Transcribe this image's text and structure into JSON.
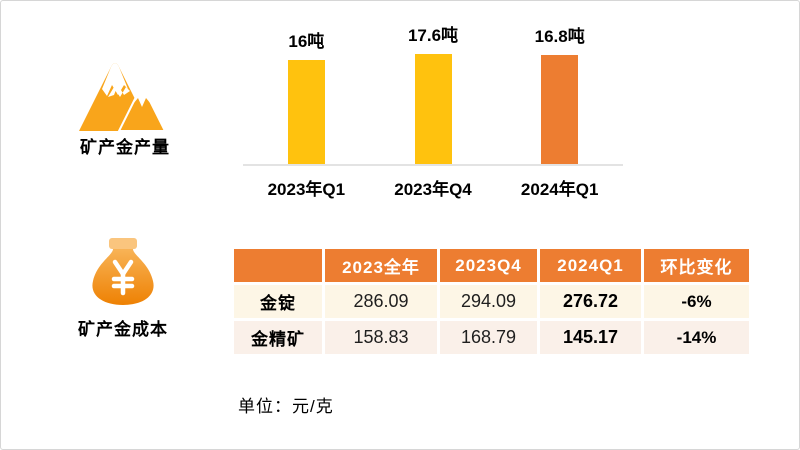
{
  "slide": {
    "background": "#FFFFFF",
    "border_color": "#D6D6D6"
  },
  "colors": {
    "accent_yellow": "#FFC20E",
    "accent_orange": "#ED7D31",
    "icon_orange": "#F9A51B",
    "money_bag_gradient_top": "#F8B356",
    "money_bag_gradient_bottom": "#EE8103",
    "table_header_bg": "#ED7D31",
    "table_row1_bg": "#FDF6E6",
    "table_row2_bg": "#FAF0E9",
    "chart_baseline": "#E3E3E3"
  },
  "production_section": {
    "icon": "mountains-icon",
    "label": "矿产金产量"
  },
  "cost_section": {
    "icon": "money-bag-icon",
    "label": "矿产金成本",
    "unit_note": "单位：元/克"
  },
  "chart_data": [
    {
      "type": "bar",
      "title": "矿产金产量",
      "categories": [
        "2023年Q1",
        "2023年Q4",
        "2024年Q1"
      ],
      "values": [
        16,
        17.6,
        16.8
      ],
      "value_labels": [
        "16吨",
        "17.6吨",
        "16.8吨"
      ],
      "bar_colors": [
        "#FFC20E",
        "#FFC20E",
        "#ED7D31"
      ],
      "unit": "吨",
      "ylim": [
        0,
        20
      ],
      "grid": false,
      "legend": false,
      "baseline_color": "#E3E3E3"
    },
    {
      "type": "table",
      "title": "矿产金成本",
      "unit": "元/克",
      "headers": [
        "",
        "2023全年",
        "2023Q4",
        "2024Q1",
        "环比变化"
      ],
      "rows": [
        {
          "label": "金锭",
          "values": [
            "286.09",
            "294.09",
            "276.72",
            "-6%"
          ]
        },
        {
          "label": "金精矿",
          "values": [
            "158.83",
            "168.79",
            "145.17",
            "-14%"
          ]
        }
      ]
    }
  ]
}
